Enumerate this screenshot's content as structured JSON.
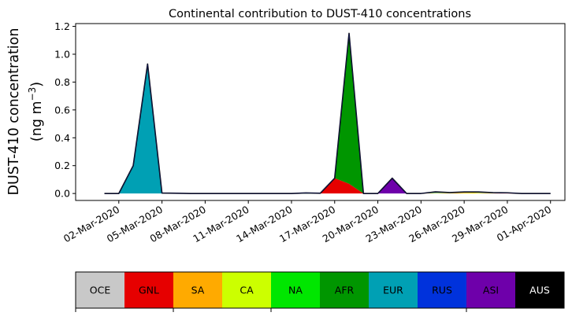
{
  "chart_data": {
    "type": "area",
    "title": "Continental contribution to DUST-410 concentrations",
    "ylabel_line1": "DUST-410 concentration",
    "ylabel_line2": "(ng m",
    "ylabel_sup": "−3",
    "ylabel_close": ")",
    "stacked": true,
    "ylim": [
      -0.05,
      1.22
    ],
    "xlim": [
      "2020-02-28",
      "2020-04-02"
    ],
    "yticks": [
      0.0,
      0.2,
      0.4,
      0.6,
      0.8,
      1.0,
      1.2
    ],
    "ytick_labels": [
      "0.0",
      "0.2",
      "0.4",
      "0.6",
      "0.8",
      "1.0",
      "1.2"
    ],
    "xticks": [
      "2020-03-02",
      "2020-03-05",
      "2020-03-08",
      "2020-03-11",
      "2020-03-14",
      "2020-03-17",
      "2020-03-20",
      "2020-03-23",
      "2020-03-26",
      "2020-03-29",
      "2020-04-01"
    ],
    "xtick_labels": [
      "02-Mar-2020",
      "05-Mar-2020",
      "08-Mar-2020",
      "11-Mar-2020",
      "14-Mar-2020",
      "17-Mar-2020",
      "20-Mar-2020",
      "23-Mar-2020",
      "26-Mar-2020",
      "29-Mar-2020",
      "01-Apr-2020"
    ],
    "x": [
      "2020-03-01",
      "2020-03-02",
      "2020-03-03",
      "2020-03-04",
      "2020-03-05",
      "2020-03-06",
      "2020-03-07",
      "2020-03-08",
      "2020-03-09",
      "2020-03-10",
      "2020-03-11",
      "2020-03-12",
      "2020-03-13",
      "2020-03-14",
      "2020-03-15",
      "2020-03-16",
      "2020-03-17",
      "2020-03-18",
      "2020-03-19",
      "2020-03-20",
      "2020-03-21",
      "2020-03-22",
      "2020-03-23",
      "2020-03-24",
      "2020-03-25",
      "2020-03-26",
      "2020-03-27",
      "2020-03-28",
      "2020-03-29",
      "2020-03-30",
      "2020-03-31",
      "2020-04-01"
    ],
    "series": [
      {
        "name": "OCE",
        "color": "#c8c8c8",
        "values": [
          0,
          0,
          0,
          0,
          0,
          0,
          0,
          0,
          0,
          0,
          0,
          0,
          0,
          0,
          0,
          0,
          0,
          0,
          0,
          0,
          0,
          0,
          0,
          0,
          0,
          0,
          0,
          0,
          0,
          0,
          0,
          0
        ]
      },
      {
        "name": "GNL",
        "color": "#e60000",
        "values": [
          0,
          0,
          0,
          0,
          0,
          0,
          0,
          0,
          0,
          0,
          0,
          0,
          0,
          0,
          0,
          0,
          0.11,
          0.07,
          0,
          0,
          0,
          0,
          0,
          0,
          0,
          0,
          0,
          0,
          0.005,
          0,
          0,
          0
        ]
      },
      {
        "name": "SA",
        "color": "#ffaa00",
        "values": [
          0,
          0,
          0,
          0,
          0,
          0,
          0,
          0,
          0,
          0,
          0,
          0,
          0,
          0,
          0,
          0,
          0,
          0,
          0,
          0,
          0,
          0,
          0,
          0.002,
          0.002,
          0.005,
          0.003,
          0.002,
          0,
          0,
          0,
          0
        ]
      },
      {
        "name": "CA",
        "color": "#ccff00",
        "values": [
          0,
          0,
          0,
          0,
          0,
          0,
          0,
          0,
          0,
          0,
          0,
          0,
          0,
          0,
          0,
          0,
          0,
          0,
          0,
          0,
          0,
          0,
          0,
          0.002,
          0.003,
          0.003,
          0.003,
          0.002,
          0,
          0,
          0,
          0
        ]
      },
      {
        "name": "NA",
        "color": "#00e600",
        "values": [
          0,
          0,
          0,
          0,
          0,
          0,
          0,
          0,
          0,
          0,
          0,
          0,
          0,
          0,
          0.004,
          0.002,
          0,
          0,
          0,
          0,
          0,
          0,
          0,
          0,
          0,
          0,
          0,
          0,
          0,
          0,
          0,
          0
        ]
      },
      {
        "name": "AFR",
        "color": "#009600",
        "values": [
          0,
          0,
          0,
          0,
          0,
          0,
          0,
          0,
          0,
          0,
          0,
          0,
          0,
          0,
          0,
          0,
          0,
          1.08,
          0,
          0,
          0,
          0,
          0,
          0,
          0,
          0,
          0,
          0,
          0,
          0,
          0,
          0
        ]
      },
      {
        "name": "EUR",
        "color": "#00a0b4",
        "values": [
          0,
          0,
          0.2,
          0.93,
          0.003,
          0.002,
          0,
          0,
          0,
          0,
          0,
          0,
          0,
          0,
          0,
          0,
          0,
          0,
          0,
          0,
          0,
          0,
          0,
          0.008,
          0.002,
          0.003,
          0.005,
          0.002,
          0,
          0,
          0,
          0
        ]
      },
      {
        "name": "RUS",
        "color": "#0032dc",
        "values": [
          0,
          0,
          0,
          0,
          0,
          0,
          0,
          0,
          0,
          0,
          0,
          0,
          0,
          0,
          0,
          0,
          0,
          0,
          0,
          0,
          0,
          0,
          0,
          0,
          0,
          0,
          0,
          0,
          0,
          0,
          0,
          0
        ]
      },
      {
        "name": "ASI",
        "color": "#6e00aa",
        "values": [
          0,
          0,
          0,
          0,
          0,
          0,
          0,
          0,
          0,
          0,
          0,
          0,
          0,
          0,
          0,
          0,
          0,
          0,
          0,
          0,
          0.11,
          0,
          0,
          0,
          0,
          0,
          0,
          0,
          0,
          0,
          0,
          0
        ]
      },
      {
        "name": "AUS",
        "color": "#000000",
        "values": [
          0,
          0,
          0,
          0,
          0,
          0,
          0,
          0,
          0,
          0,
          0,
          0,
          0,
          0,
          0,
          0,
          0,
          0,
          0,
          0,
          0,
          0,
          0,
          0,
          0,
          0,
          0,
          0,
          0,
          0,
          0,
          0
        ]
      }
    ],
    "legend": {
      "placement": "bottom",
      "entries": [
        {
          "name": "OCE",
          "color": "#c8c8c8",
          "text_color": "#000000"
        },
        {
          "name": "GNL",
          "color": "#e60000",
          "text_color": "#000000"
        },
        {
          "name": "SA",
          "color": "#ffaa00",
          "text_color": "#000000"
        },
        {
          "name": "CA",
          "color": "#ccff00",
          "text_color": "#000000"
        },
        {
          "name": "NA",
          "color": "#00e600",
          "text_color": "#000000"
        },
        {
          "name": "AFR",
          "color": "#009600",
          "text_color": "#000000"
        },
        {
          "name": "EUR",
          "color": "#00a0b4",
          "text_color": "#000000"
        },
        {
          "name": "RUS",
          "color": "#0032dc",
          "text_color": "#000000"
        },
        {
          "name": "ASI",
          "color": "#6e00aa",
          "text_color": "#000000"
        },
        {
          "name": "AUS",
          "color": "#000000",
          "text_color": "#ffffff"
        }
      ]
    },
    "grid": false,
    "total_line_color": "#000000"
  }
}
